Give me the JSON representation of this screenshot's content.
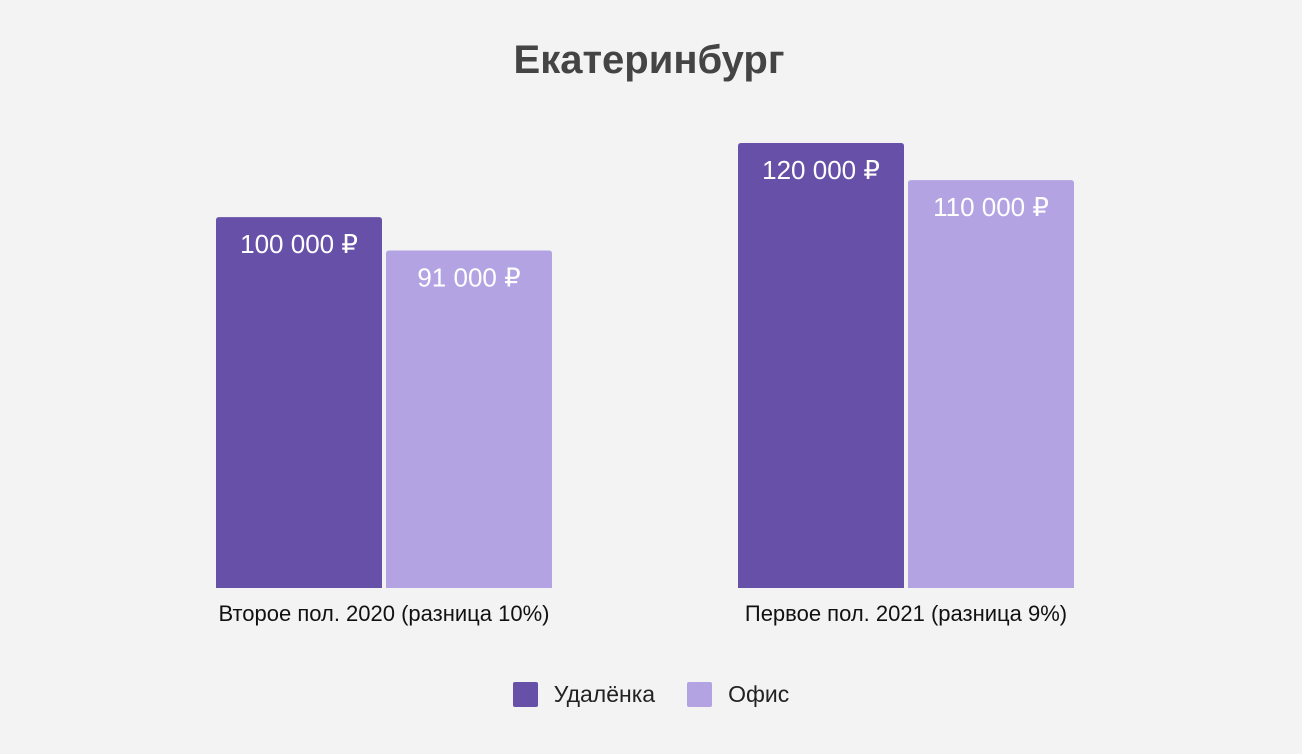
{
  "chart_data": {
    "type": "bar",
    "title": "Екатеринбург",
    "categories": [
      "Второе пол. 2020 (разница 10%)",
      "Первое пол. 2021 (разница 9%)"
    ],
    "series": [
      {
        "name": "Удалёнка",
        "color": "#6750a8",
        "values": [
          100000,
          120000
        ],
        "labels": [
          "100 000 ₽",
          "120 000 ₽"
        ]
      },
      {
        "name": "Офис",
        "color": "#b3a3e3",
        "values": [
          91000,
          110000
        ],
        "labels": [
          "91 000 ₽",
          "110 000 ₽"
        ]
      }
    ],
    "ylim": [
      0,
      120000
    ],
    "grid": false,
    "legend_position": "bottom"
  }
}
